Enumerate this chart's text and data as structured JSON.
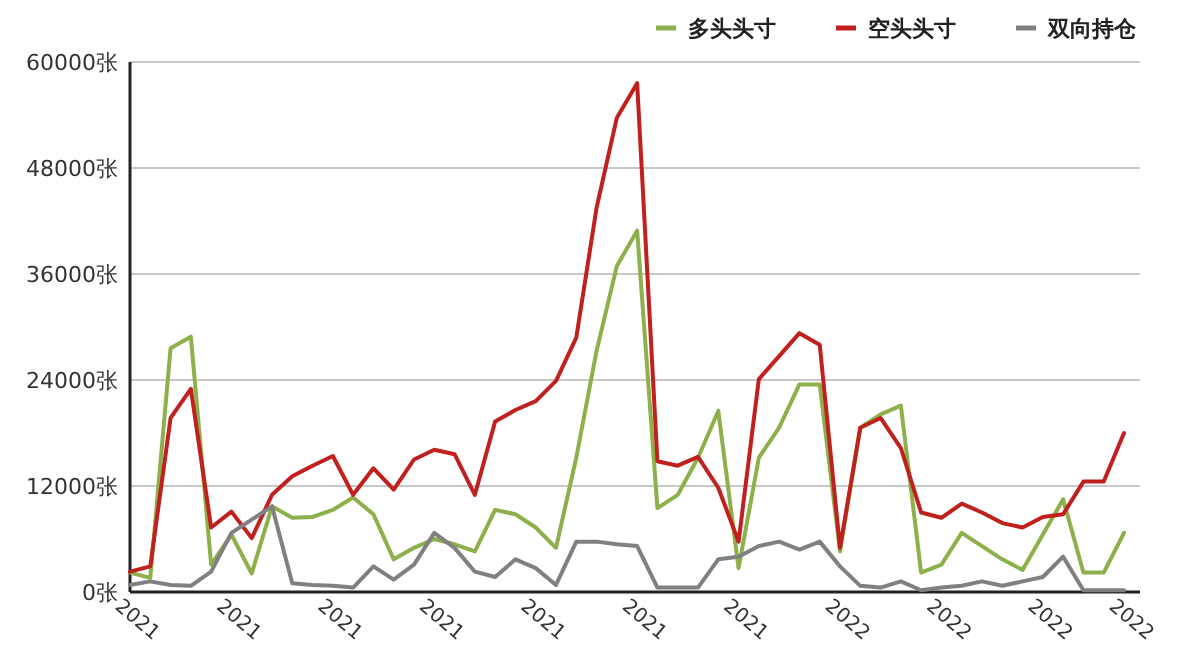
{
  "chart_data": {
    "type": "line",
    "categories": [
      "2021",
      null,
      null,
      null,
      null,
      "2021",
      null,
      null,
      null,
      null,
      "2021",
      null,
      null,
      null,
      null,
      "2021",
      null,
      null,
      null,
      null,
      "2021",
      null,
      null,
      null,
      null,
      "2021",
      null,
      null,
      null,
      null,
      "2021",
      null,
      null,
      null,
      null,
      "2022",
      null,
      null,
      null,
      null,
      "2022",
      null,
      null,
      null,
      null,
      "2022",
      null,
      null,
      null,
      "2022"
    ],
    "series": [
      {
        "name": "多头头寸",
        "color": "#8db04a",
        "values": [
          2200,
          1600,
          27600,
          28900,
          3100,
          6500,
          2100,
          9700,
          8400,
          8500,
          9300,
          10700,
          8800,
          3700,
          5000,
          6000,
          5400,
          4600,
          9300,
          8800,
          7300,
          5000,
          15200,
          27300,
          36900,
          40900,
          9500,
          11000,
          15200,
          20500,
          2700,
          15200,
          18600,
          23500,
          23500,
          4600,
          18600,
          20100,
          21100,
          2200,
          3100,
          6700,
          5200,
          3700,
          2500,
          6500,
          10500,
          2200,
          2200,
          6700
        ]
      },
      {
        "name": "空头头寸",
        "color": "#c0201e",
        "values": [
          2300,
          2900,
          19700,
          23000,
          7300,
          9100,
          6100,
          11000,
          13100,
          14300,
          15400,
          11000,
          14000,
          11600,
          15000,
          16100,
          15600,
          11000,
          19300,
          20600,
          21600,
          23900,
          28800,
          43500,
          53700,
          57600,
          14800,
          14300,
          15300,
          11800,
          5700,
          24100,
          26700,
          29300,
          28000,
          5000,
          18600,
          19700,
          16300,
          9000,
          8400,
          10000,
          9000,
          7800,
          7300,
          8500,
          8800,
          12500,
          12500,
          18000
        ]
      },
      {
        "name": "双向持仓",
        "color": "#808080",
        "values": [
          800,
          1200,
          800,
          700,
          2300,
          6700,
          8200,
          9700,
          1000,
          800,
          700,
          500,
          2900,
          1400,
          3100,
          6700,
          5000,
          2300,
          1700,
          3700,
          2700,
          800,
          5700,
          5700,
          5400,
          5200,
          500,
          500,
          500,
          3700,
          4000,
          5200,
          5700,
          4800,
          5700,
          2900,
          700,
          500,
          1200,
          200,
          500,
          700,
          1200,
          700,
          1200,
          1700,
          4000,
          200,
          200,
          200
        ]
      }
    ],
    "ylim": [
      0,
      60000
    ],
    "yticks": [
      {
        "value": 0,
        "label": "0张"
      },
      {
        "value": 12000,
        "label": "12000张"
      },
      {
        "value": 24000,
        "label": "24000张"
      },
      {
        "value": 36000,
        "label": "36000张"
      },
      {
        "value": 48000,
        "label": "48000张"
      },
      {
        "value": 60000,
        "label": "60000张"
      }
    ],
    "grid": "y",
    "legend": "top right",
    "marker": "none",
    "line_style": "solid"
  }
}
